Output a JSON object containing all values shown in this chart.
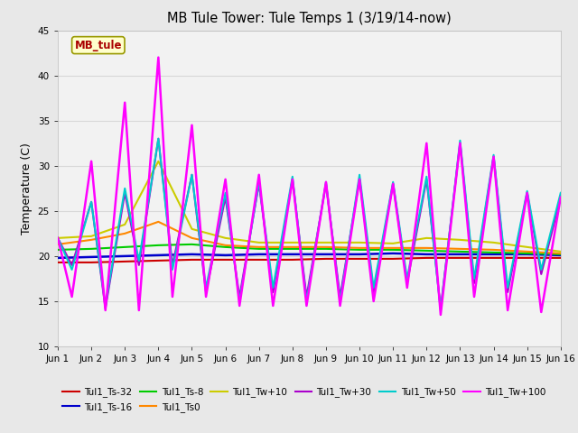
{
  "title": "MB Tule Tower: Tule Temps 1 (3/19/14-now)",
  "ylabel": "Temperature (C)",
  "xlim": [
    0,
    15
  ],
  "ylim": [
    10,
    45
  ],
  "yticks": [
    10,
    15,
    20,
    25,
    30,
    35,
    40,
    45
  ],
  "xtick_labels": [
    "Jun 1",
    "Jun 2",
    "Jun 3",
    "Jun 4",
    "Jun 5",
    "Jun 6",
    "Jun 7",
    "Jun 8",
    "Jun 9",
    "Jun 10",
    "Jun 11",
    "Jun 12",
    "Jun 13",
    "Jun 14",
    "Jun 15",
    "Jun 16"
  ],
  "xtick_positions": [
    0,
    1,
    2,
    3,
    4,
    5,
    6,
    7,
    8,
    9,
    10,
    11,
    12,
    13,
    14,
    15
  ],
  "fig_bg": "#e8e8e8",
  "plot_bg": "#f2f2f2",
  "grid_color": "#d8d8d8",
  "station_label": "MB_tule",
  "station_label_color": "#aa0000",
  "station_box_facecolor": "#ffffcc",
  "station_box_edgecolor": "#999900",
  "legend_items": [
    {
      "label": "Tul1_Ts-32",
      "color": "#cc0000"
    },
    {
      "label": "Tul1_Ts-16",
      "color": "#0000cc"
    },
    {
      "label": "Tul1_Ts-8",
      "color": "#00cc00"
    },
    {
      "label": "Tul1_Ts0",
      "color": "#ff8800"
    },
    {
      "label": "Tul1_Tw+10",
      "color": "#cccc00"
    },
    {
      "label": "Tul1_Tw+30",
      "color": "#aa00cc"
    },
    {
      "label": "Tul1_Tw+50",
      "color": "#00cccc"
    },
    {
      "label": "Tul1_Tw+100",
      "color": "#ff00ff"
    }
  ],
  "flat_x": [
    0,
    1,
    2,
    3,
    4,
    5,
    6,
    7,
    8,
    9,
    10,
    11,
    12,
    13,
    14,
    15
  ],
  "flat_series": [
    {
      "name": "Tul1_Ts-32",
      "color": "#cc0000",
      "lw": 1.5,
      "y": [
        19.3,
        19.3,
        19.4,
        19.5,
        19.6,
        19.6,
        19.6,
        19.6,
        19.7,
        19.7,
        19.7,
        19.8,
        19.8,
        19.8,
        19.8,
        19.8
      ]
    },
    {
      "name": "Tul1_Ts-16",
      "color": "#0000cc",
      "lw": 1.8,
      "y": [
        19.8,
        19.9,
        20.0,
        20.1,
        20.2,
        20.1,
        20.2,
        20.2,
        20.2,
        20.2,
        20.3,
        20.2,
        20.2,
        20.2,
        20.2,
        20.1
      ]
    },
    {
      "name": "Tul1_Ts-8",
      "color": "#00cc00",
      "lw": 1.5,
      "y": [
        20.7,
        20.8,
        21.0,
        21.2,
        21.3,
        21.0,
        20.8,
        20.8,
        20.8,
        20.7,
        20.7,
        20.6,
        20.5,
        20.4,
        20.3,
        20.2
      ]
    },
    {
      "name": "Tul1_Ts0",
      "color": "#ff8800",
      "lw": 1.5,
      "y": [
        21.3,
        21.8,
        22.5,
        23.8,
        22.0,
        21.2,
        21.0,
        21.0,
        21.0,
        20.9,
        20.9,
        20.9,
        20.8,
        20.7,
        20.5,
        20.3
      ]
    },
    {
      "name": "Tul1_Tw+10",
      "color": "#cccc00",
      "lw": 1.5,
      "y": [
        22.0,
        22.2,
        23.5,
        30.5,
        23.0,
        22.0,
        21.5,
        21.5,
        21.5,
        21.5,
        21.4,
        22.0,
        21.8,
        21.5,
        21.0,
        20.5
      ]
    }
  ],
  "osc_x": [
    0,
    0.42,
    1,
    1.42,
    2,
    2.42,
    3,
    3.42,
    4,
    4.42,
    5,
    5.42,
    6,
    6.42,
    7,
    7.42,
    8,
    8.42,
    9,
    9.42,
    10,
    10.42,
    11,
    11.42,
    12,
    12.42,
    13,
    13.42,
    14,
    14.42,
    15
  ],
  "osc_series": [
    {
      "name": "Tul1_Tw+30",
      "color": "#aa00cc",
      "lw": 1.5,
      "y": [
        22,
        19.0,
        26,
        14.2,
        27,
        19.0,
        33,
        19.0,
        29,
        16.0,
        26.5,
        15.5,
        28,
        16.0,
        28.5,
        15.5,
        28,
        15.5,
        28.5,
        16.0,
        28,
        17.0,
        28.5,
        14.2,
        32.5,
        17.0,
        31,
        16.0,
        27,
        18.0,
        26.5
      ]
    },
    {
      "name": "Tul1_Tw+50",
      "color": "#00cccc",
      "lw": 1.5,
      "y": [
        22,
        18.5,
        26,
        14.5,
        27.5,
        19.5,
        33,
        18.5,
        29,
        16.5,
        27.0,
        15.0,
        28.2,
        16.5,
        28.8,
        15.0,
        28.2,
        15.0,
        29,
        16.5,
        28.2,
        17.5,
        28.8,
        14.0,
        32.8,
        17.5,
        31.2,
        16.5,
        27.2,
        18.5,
        27
      ]
    },
    {
      "name": "Tul1_Tw+100",
      "color": "#ff00ff",
      "lw": 1.8,
      "y": [
        22,
        15.5,
        30.5,
        14.0,
        37,
        14.0,
        42,
        15.5,
        34.5,
        15.5,
        28.5,
        14.5,
        29,
        14.5,
        28.5,
        14.5,
        28.2,
        14.5,
        28.5,
        15.0,
        28,
        16.5,
        32.5,
        13.5,
        32.5,
        15.5,
        31,
        14.0,
        27,
        13.8,
        26.5
      ]
    }
  ]
}
